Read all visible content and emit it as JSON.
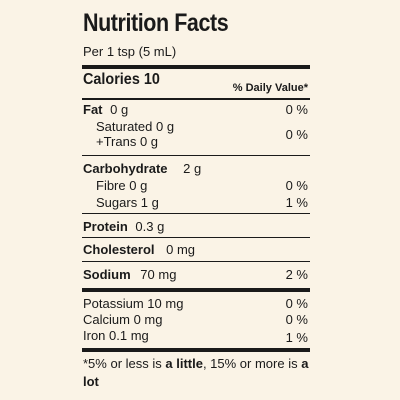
{
  "label": {
    "title": "Nutrition Facts",
    "serving": "Per 1 tsp (5 mL)",
    "calories": "Calories 10",
    "dv_header": "% Daily Value*"
  },
  "nutrients": {
    "fat": {
      "name": "Fat",
      "amount": "0 g",
      "dv": "0 %"
    },
    "saturated": {
      "name": "Saturated 0 g",
      "line2": "+Trans 0 g",
      "dv": "0 %"
    },
    "carbohydrate": {
      "name": "Carbohydrate",
      "amount": "2 g"
    },
    "fibre": {
      "name": "Fibre 0 g",
      "dv": "0 %"
    },
    "sugars": {
      "name": "Sugars 1 g",
      "dv": "1 %"
    },
    "protein": {
      "name": "Protein",
      "amount": "0.3 g"
    },
    "cholesterol": {
      "name": "Cholesterol",
      "amount": "0 mg"
    },
    "sodium": {
      "name": "Sodium",
      "amount": "70 mg",
      "dv": "2 %"
    },
    "potassium": {
      "name": "Potassium 10 mg",
      "dv": "0 %"
    },
    "calcium": {
      "name": "Calcium 0 mg",
      "dv": "0 %"
    },
    "iron": {
      "name": "Iron 0.1 mg",
      "dv": "1 %"
    }
  },
  "footnote": {
    "part1": "*5% or less is ",
    "little": "a little",
    "part2": ", 15% or more is ",
    "lot": "a lot"
  }
}
